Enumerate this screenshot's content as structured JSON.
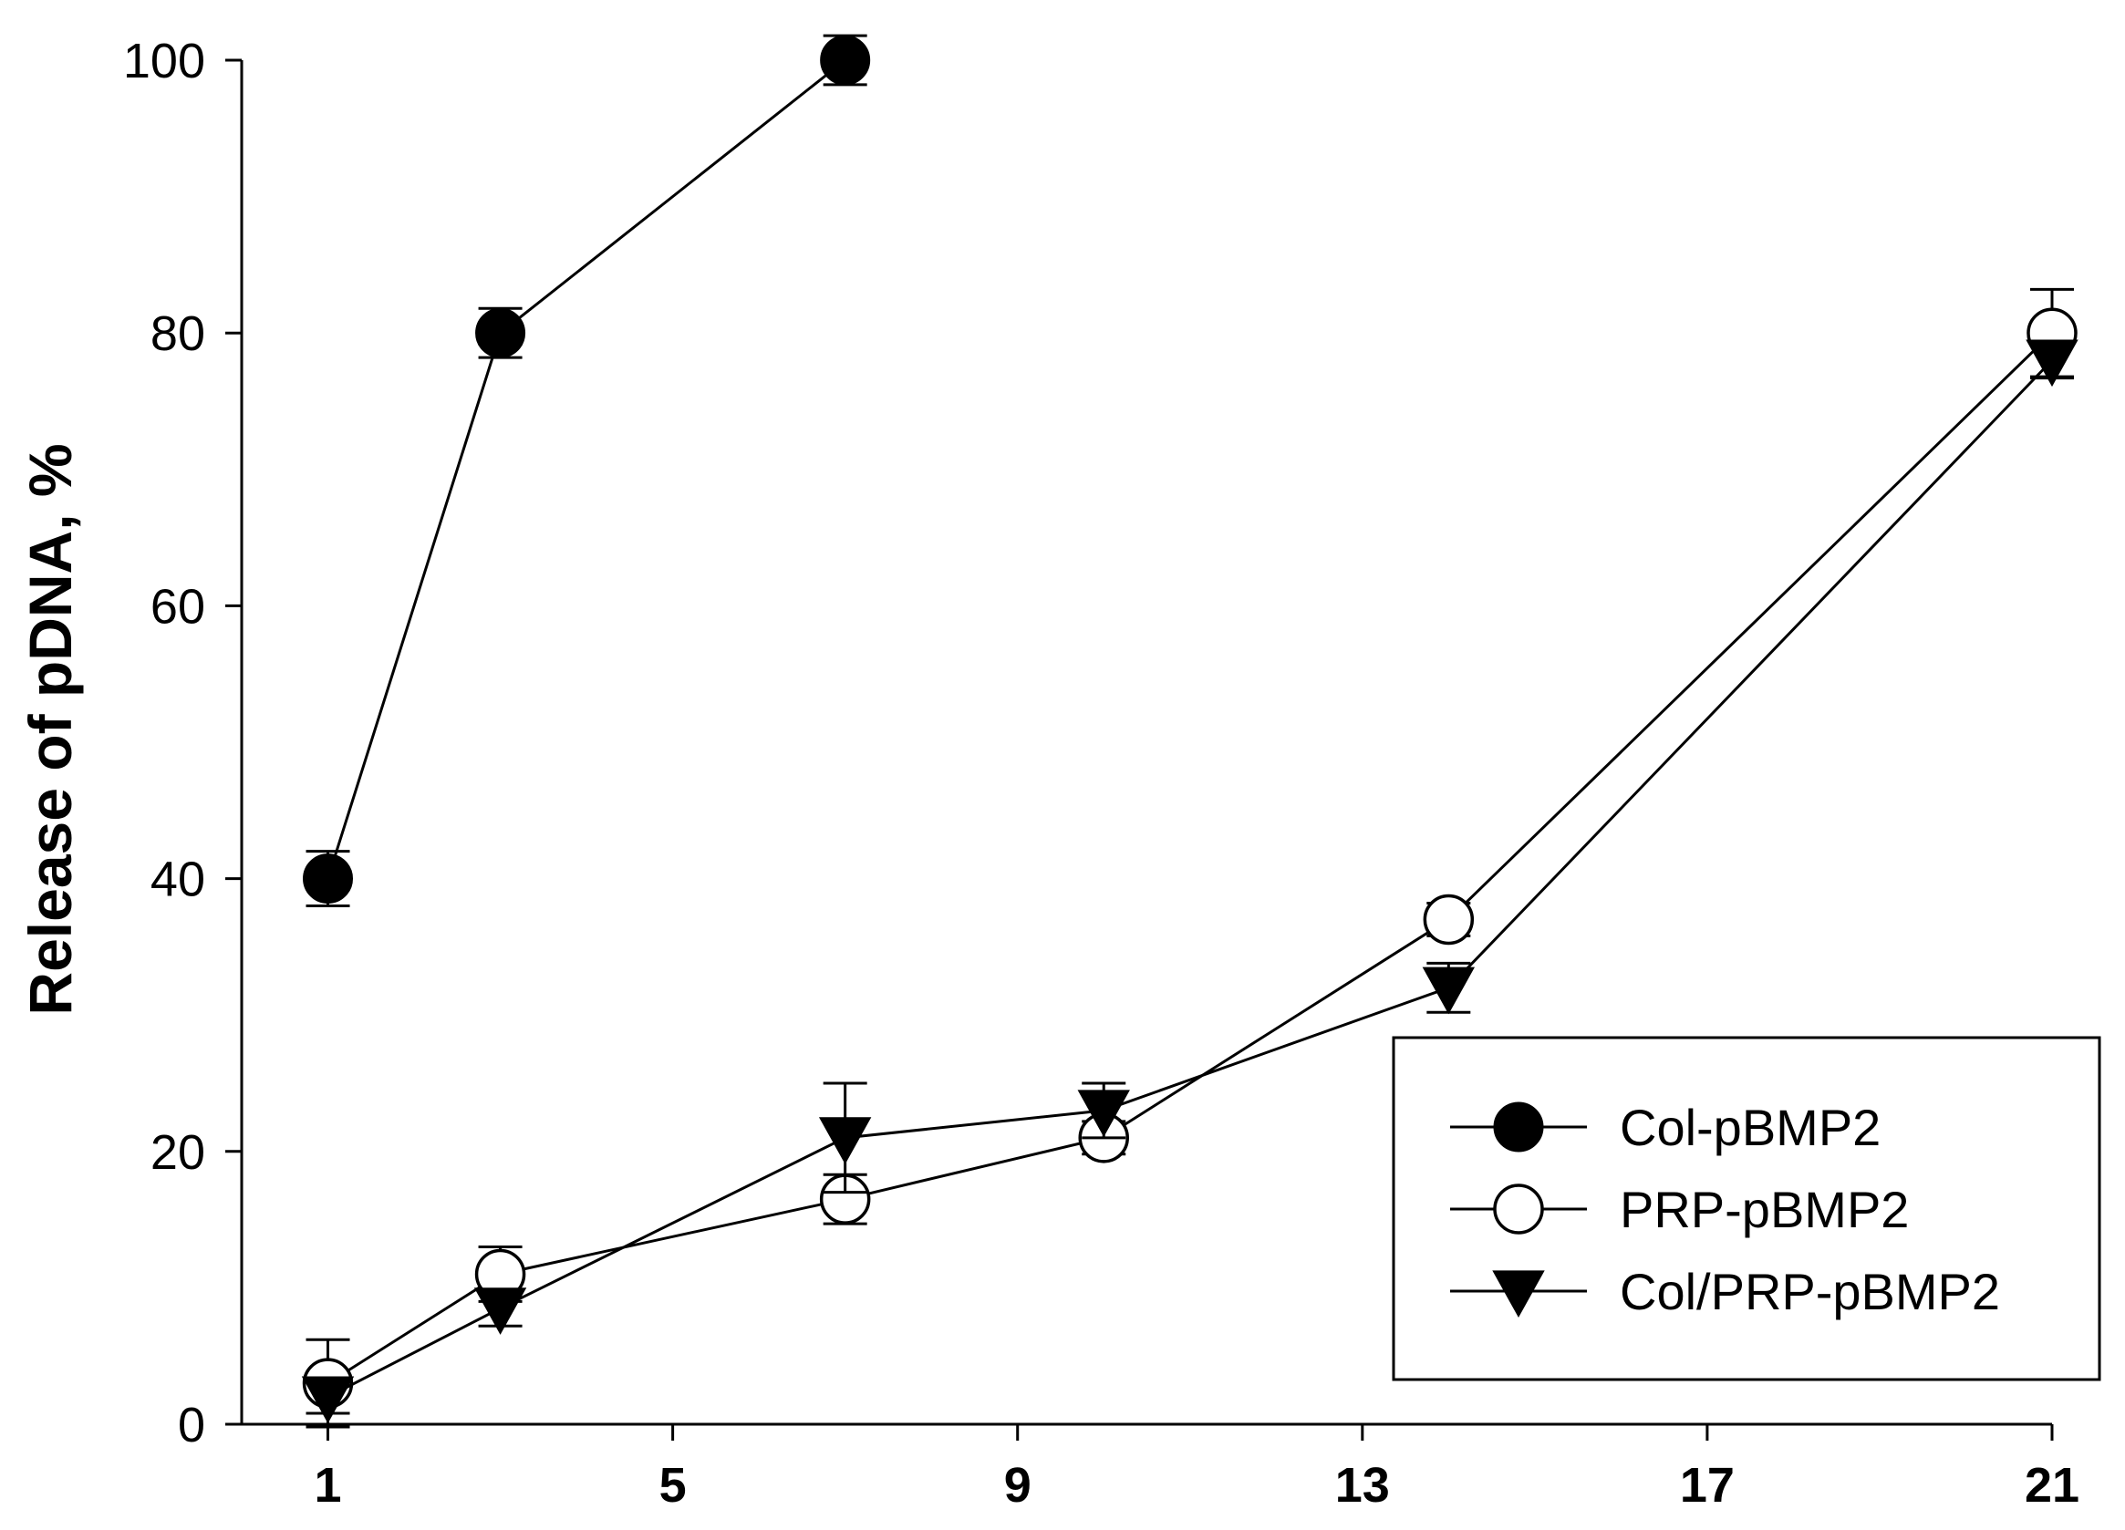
{
  "chart_data": {
    "type": "line",
    "title": "",
    "xlabel": "",
    "ylabel": "Release of pDNA, %",
    "xlim": [
      0,
      21
    ],
    "ylim": [
      0,
      100
    ],
    "xticks": [
      1,
      5,
      9,
      13,
      17,
      21
    ],
    "yticks": [
      0,
      20,
      40,
      60,
      80,
      100
    ],
    "xtick_labels": [
      "1",
      "5",
      "9",
      "13",
      "17",
      "21"
    ],
    "ytick_labels": [
      "0",
      "20",
      "40",
      "60",
      "80",
      "100"
    ],
    "grid": false,
    "legend_position": "lower-right",
    "series": [
      {
        "name": "Col-pBMP2",
        "marker": "filled-circle",
        "color": "#000000",
        "x": [
          1,
          3,
          7
        ],
        "y": [
          40,
          80,
          100
        ],
        "error": [
          2,
          1.8,
          1.8
        ]
      },
      {
        "name": "PRP-pBMP2",
        "marker": "open-circle",
        "color": "#000000",
        "x": [
          1,
          3,
          7,
          10,
          14,
          21
        ],
        "y": [
          3,
          11,
          16.5,
          21,
          37,
          80
        ],
        "error": [
          3.2,
          2,
          1.8,
          1.2,
          1.2,
          3.2
        ]
      },
      {
        "name": "Col/PRP-pBMP2",
        "marker": "filled-triangle-down",
        "color": "#000000",
        "x": [
          1,
          3,
          7,
          10,
          14,
          21
        ],
        "y": [
          2,
          8.5,
          21,
          23,
          32,
          78
        ],
        "error": [
          1.2,
          1.3,
          4,
          2,
          1.8,
          1.3
        ]
      }
    ]
  }
}
